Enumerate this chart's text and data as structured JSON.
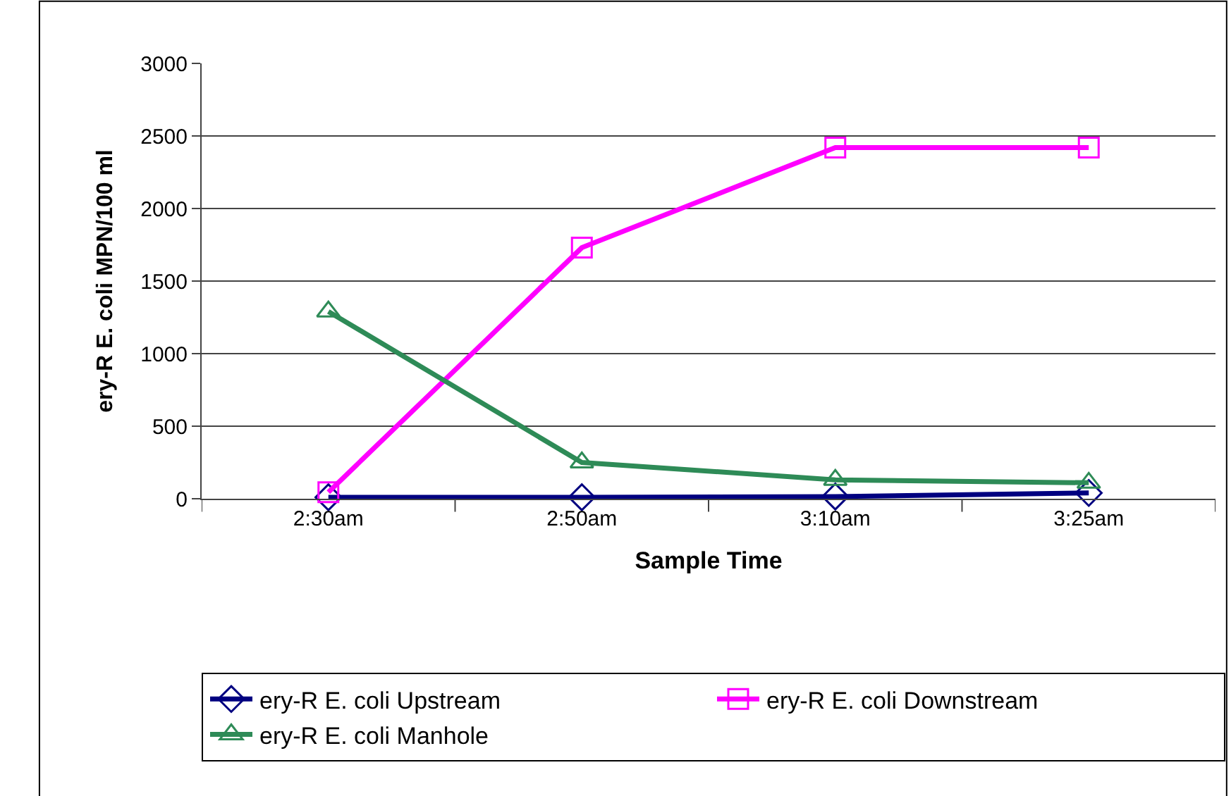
{
  "chart_data": {
    "type": "line",
    "xlabel": "Sample Time",
    "ylabel": "ery-R E. coli MPN/100 ml",
    "categories": [
      "2:30am",
      "2:50am",
      "3:10am",
      "3:25am"
    ],
    "ylim": [
      0,
      3000
    ],
    "yticks": [
      0,
      500,
      1000,
      1500,
      2000,
      2500,
      3000
    ],
    "grid": "y",
    "legend": "bottom",
    "line_style": "solid",
    "series": [
      {
        "name": "ery-R E. coli Upstream",
        "color": "#000080",
        "marker": "diamond",
        "values": [
          10,
          10,
          15,
          40
        ]
      },
      {
        "name": "ery-R E. coli Downstream",
        "color": "#ff00ff",
        "marker": "square",
        "values": [
          45,
          1730,
          2420,
          2420
        ]
      },
      {
        "name": "ery-R E. coli Manhole",
        "color": "#2e8b57",
        "marker": "triangle",
        "values": [
          1290,
          250,
          130,
          110
        ]
      }
    ]
  }
}
